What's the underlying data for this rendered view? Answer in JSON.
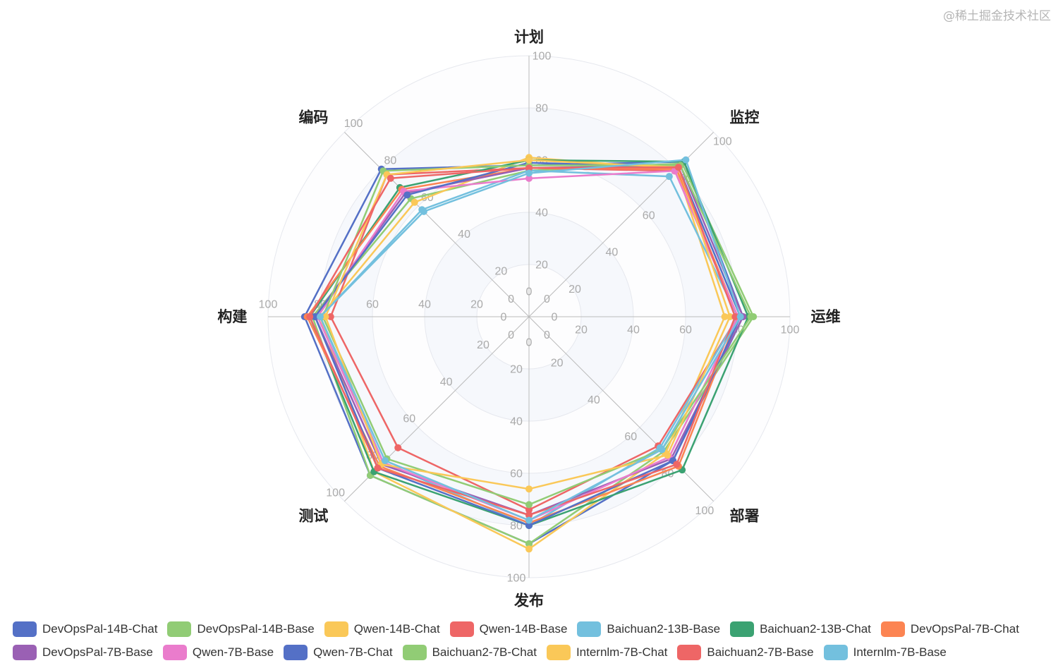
{
  "chart_data": {
    "type": "radar",
    "indicators": [
      "计划",
      "监控",
      "运维",
      "部署",
      "发布",
      "测试",
      "构建",
      "编码"
    ],
    "max": 100,
    "ticks": [
      0,
      20,
      40,
      60,
      80,
      100
    ],
    "legend_placement": "bottom",
    "series": [
      {
        "name": "DevOpsPal-14B-Chat",
        "color": "#5470c6",
        "values": [
          58,
          84,
          82,
          78,
          87,
          86,
          86,
          80
        ]
      },
      {
        "name": "DevOpsPal-14B-Base",
        "color": "#91cc75",
        "values": [
          56,
          83,
          86,
          73,
          87,
          86,
          83,
          64
        ]
      },
      {
        "name": "Qwen-14B-Chat",
        "color": "#fac858",
        "values": [
          61,
          80,
          75,
          74,
          89,
          84,
          80,
          62
        ]
      },
      {
        "name": "Qwen-14B-Base",
        "color": "#ee6666",
        "values": [
          57,
          79,
          80,
          70,
          74,
          71,
          76,
          77
        ]
      },
      {
        "name": "Baichuan2-13B-Base",
        "color": "#73c0de",
        "values": [
          56,
          76,
          80,
          71,
          80,
          79,
          80,
          58
        ]
      },
      {
        "name": "Baichuan2-13B-Chat",
        "color": "#3ba272",
        "values": [
          60,
          84,
          84,
          83,
          80,
          84,
          84,
          70
        ]
      },
      {
        "name": "DevOpsPal-7B-Chat",
        "color": "#fc8452",
        "values": [
          57,
          80,
          80,
          81,
          79,
          81,
          85,
          69
        ]
      },
      {
        "name": "DevOpsPal-7B-Base",
        "color": "#9a60b4",
        "values": [
          57,
          82,
          82,
          77,
          76,
          80,
          82,
          67
        ]
      },
      {
        "name": "Qwen-7B-Base",
        "color": "#ea7ccc",
        "values": [
          53,
          79,
          80,
          76,
          78,
          79,
          81,
          68
        ]
      },
      {
        "name": "Qwen-7B-Chat",
        "color": "#5470c6",
        "values": [
          59,
          81,
          81,
          78,
          80,
          82,
          82,
          66
        ]
      },
      {
        "name": "Baichuan2-7B-Chat",
        "color": "#91cc75",
        "values": [
          58,
          82,
          85,
          72,
          72,
          77,
          79,
          79
        ]
      },
      {
        "name": "Internlm-7B-Chat",
        "color": "#fac858",
        "values": [
          60,
          81,
          77,
          75,
          66,
          80,
          78,
          77
        ]
      },
      {
        "name": "Baichuan2-7B-Base",
        "color": "#ee6666",
        "values": [
          57,
          81,
          79,
          80,
          76,
          82,
          84,
          75
        ]
      },
      {
        "name": "Internlm-7B-Base",
        "color": "#73c0de",
        "values": [
          55,
          85,
          81,
          72,
          78,
          78,
          80,
          57
        ]
      }
    ]
  },
  "watermark": "@稀土掘金技术社区"
}
